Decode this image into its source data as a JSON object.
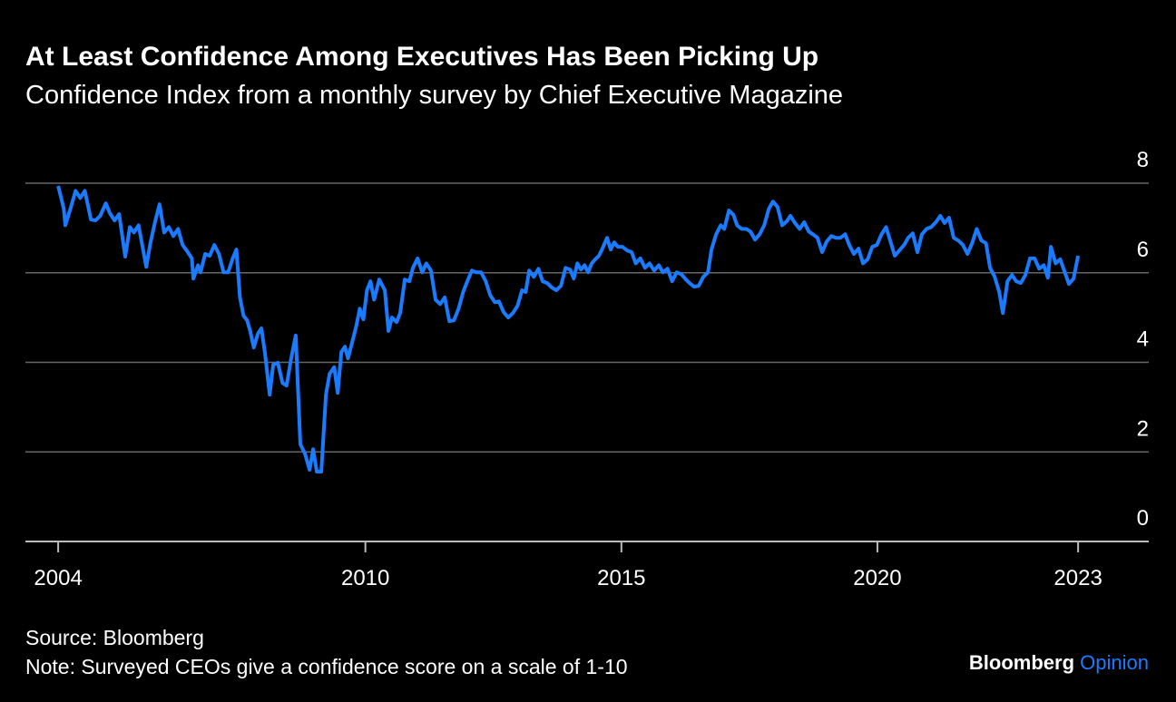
{
  "chart_data": {
    "type": "line",
    "title": "At Least Confidence Among Executives Has Been Picking Up",
    "subtitle": "Confidence Index from a monthly survey by Chief Executive Magazine",
    "source": "Source: Bloomberg",
    "note": "Note: Surveyed CEOs give a confidence score on a scale of 1-10",
    "brand": "Bloomberg",
    "brand_section": "Opinion",
    "color": "#1a7bff",
    "x": [
      2004.0,
      2004.11,
      2004.14,
      2004.25,
      2004.34,
      2004.43,
      2004.52,
      2004.64,
      2004.73,
      2004.82,
      2004.93,
      2005.01,
      2005.1,
      2005.19,
      2005.31,
      2005.4,
      2005.48,
      2005.57,
      2005.72,
      2005.8,
      2005.89,
      2005.98,
      2006.07,
      2006.16,
      2006.25,
      2006.34,
      2006.43,
      2006.52,
      2006.61,
      2006.64,
      2006.73,
      2006.78,
      2006.87,
      2006.96,
      2007.05,
      2007.14,
      2007.23,
      2007.32,
      2007.41,
      2007.48,
      2007.55,
      2007.62,
      2007.69,
      2007.75,
      2007.82,
      2007.9,
      2007.97,
      2008.04,
      2008.13,
      2008.2,
      2008.29,
      2008.38,
      2008.46,
      2008.55,
      2008.64,
      2008.73,
      2008.82,
      2008.91,
      2008.98,
      2009.05,
      2009.14,
      2009.23,
      2009.3,
      2009.39,
      2009.46,
      2009.53,
      2009.6,
      2009.66,
      2009.73,
      2009.82,
      2009.89,
      2009.96,
      2010.03,
      2010.1,
      2010.17,
      2010.27,
      2010.38,
      2010.45,
      2010.52,
      2010.61,
      2010.68,
      2010.77,
      2010.86,
      2010.93,
      2011.02,
      2011.11,
      2011.19,
      2011.28,
      2011.37,
      2011.46,
      2011.55,
      2011.64,
      2011.73,
      2011.82,
      2011.91,
      2011.99,
      2012.08,
      2012.17,
      2012.26,
      2012.35,
      2012.44,
      2012.53,
      2012.61,
      2012.7,
      2012.79,
      2012.88,
      2012.97,
      2013.06,
      2013.13,
      2013.2,
      2013.29,
      2013.38,
      2013.46,
      2013.55,
      2013.64,
      2013.73,
      2013.82,
      2013.91,
      2014.0,
      2014.07,
      2014.14,
      2014.21,
      2014.28,
      2014.35,
      2014.42,
      2014.49,
      2014.56,
      2014.63,
      2014.72,
      2014.79,
      2014.86,
      2014.93,
      2015.02,
      2015.11,
      2015.2,
      2015.28,
      2015.37,
      2015.46,
      2015.55,
      2015.64,
      2015.73,
      2015.81,
      2015.9,
      2015.99,
      2016.08,
      2016.17,
      2016.26,
      2016.33,
      2016.42,
      2016.51,
      2016.6,
      2016.69,
      2016.76,
      2016.85,
      2016.94,
      2017.01,
      2017.1,
      2017.19,
      2017.26,
      2017.35,
      2017.44,
      2017.52,
      2017.61,
      2017.7,
      2017.79,
      2017.88,
      2017.96,
      2018.05,
      2018.14,
      2018.23,
      2018.3,
      2018.39,
      2018.48,
      2018.57,
      2018.66,
      2018.74,
      2018.83,
      2018.92,
      2019.01,
      2019.1,
      2019.19,
      2019.28,
      2019.37,
      2019.45,
      2019.54,
      2019.63,
      2019.72,
      2019.81,
      2019.9,
      2019.99,
      2020.08,
      2020.17,
      2020.25,
      2020.34,
      2020.43,
      2020.52,
      2020.6,
      2020.69,
      2020.78,
      2020.87,
      2020.96,
      2021.05,
      2021.14,
      2021.23,
      2021.31,
      2021.4,
      2021.49,
      2021.58,
      2021.67,
      2021.76,
      2021.85,
      2021.94,
      2022.03,
      2022.12,
      2022.2,
      2022.29,
      2022.38,
      2022.45,
      2022.54,
      2022.63,
      2022.71,
      2022.8,
      2022.89,
      2022.98,
      2023.07,
      2023.16,
      2023.25,
      2023.33,
      2023.39,
      2023.48,
      2023.57,
      2023.66,
      2023.74,
      2023.83,
      2023.92
    ],
    "values": [
      7.94,
      7.43,
      7.06,
      7.47,
      7.83,
      7.67,
      7.83,
      7.19,
      7.17,
      7.27,
      7.55,
      7.33,
      7.17,
      7.31,
      6.36,
      7.02,
      6.9,
      7.06,
      6.13,
      6.66,
      7.13,
      7.53,
      6.9,
      7.02,
      6.82,
      6.98,
      6.62,
      6.48,
      6.32,
      5.87,
      6.17,
      6.01,
      6.42,
      6.38,
      6.62,
      6.42,
      6.01,
      6.01,
      6.32,
      6.52,
      5.45,
      5.04,
      4.94,
      4.7,
      4.33,
      4.64,
      4.76,
      4.19,
      3.28,
      3.95,
      3.99,
      3.54,
      3.48,
      4.09,
      4.6,
      2.17,
      1.96,
      1.6,
      2.06,
      1.56,
      1.56,
      3.28,
      3.74,
      3.89,
      3.32,
      4.23,
      4.35,
      4.09,
      4.39,
      4.8,
      5.2,
      4.96,
      5.61,
      5.81,
      5.4,
      5.85,
      5.61,
      4.7,
      5.0,
      4.9,
      5.1,
      5.85,
      5.81,
      6.11,
      6.32,
      6.01,
      6.21,
      6.05,
      5.4,
      5.3,
      5.45,
      4.92,
      4.94,
      5.2,
      5.57,
      5.81,
      6.05,
      6.01,
      6.01,
      5.81,
      5.49,
      5.34,
      5.36,
      5.12,
      5.0,
      5.1,
      5.26,
      5.61,
      5.57,
      6.05,
      5.91,
      6.09,
      5.81,
      5.77,
      5.67,
      5.61,
      5.71,
      6.11,
      6.07,
      5.87,
      6.21,
      6.07,
      6.17,
      6.01,
      6.21,
      6.3,
      6.38,
      6.54,
      6.78,
      6.52,
      6.68,
      6.58,
      6.58,
      6.5,
      6.46,
      6.21,
      6.32,
      6.11,
      6.21,
      6.05,
      6.17,
      6.01,
      6.09,
      5.81,
      6.01,
      5.97,
      5.85,
      5.77,
      5.69,
      5.71,
      5.91,
      6.01,
      6.52,
      6.86,
      7.06,
      6.98,
      7.39,
      7.29,
      7.06,
      6.98,
      6.98,
      6.92,
      6.74,
      6.86,
      7.06,
      7.43,
      7.59,
      7.47,
      7.06,
      7.15,
      7.27,
      7.11,
      6.98,
      7.13,
      6.92,
      6.86,
      6.78,
      6.46,
      6.7,
      6.82,
      6.78,
      6.78,
      6.86,
      6.62,
      6.42,
      6.54,
      6.21,
      6.3,
      6.58,
      6.62,
      6.86,
      7.02,
      6.72,
      6.38,
      6.5,
      6.62,
      6.78,
      6.88,
      6.46,
      6.86,
      6.98,
      7.02,
      7.13,
      7.27,
      7.11,
      7.23,
      6.78,
      6.72,
      6.62,
      6.42,
      6.66,
      6.98,
      6.72,
      6.66,
      6.11,
      5.91,
      5.57,
      5.1,
      5.81,
      5.95,
      5.81,
      5.77,
      5.95,
      6.32,
      6.32,
      6.09,
      6.17,
      5.89,
      6.58,
      6.21,
      6.3,
      6.01,
      5.75,
      5.87,
      6.38
    ],
    "xlim": [
      2003.36,
      2025.3
    ],
    "xticks": [
      2004,
      2010,
      2015,
      2020,
      {
        "value": 2023.92,
        "label": "2023"
      }
    ],
    "ylim": [
      0,
      8
    ],
    "yticks": [
      0,
      2,
      4,
      6,
      8
    ],
    "grid": true
  }
}
